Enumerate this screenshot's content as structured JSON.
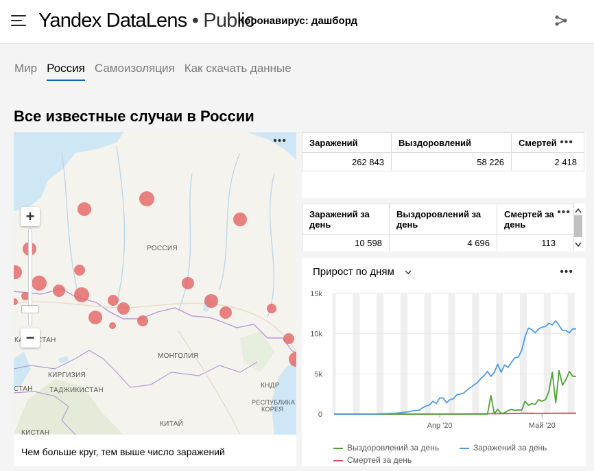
{
  "header": {
    "logo_yandex": "Yandex",
    "logo_datalens": "DataLens",
    "logo_public": "• Public",
    "dashboard_title": "Коронавирус: дашборд"
  },
  "tabs": [
    {
      "label": "Мир"
    },
    {
      "label": "Россия",
      "active": true
    },
    {
      "label": "Самоизоляция"
    },
    {
      "label": "Как скачать данные"
    }
  ],
  "section_title": "Все известные случаи в России",
  "map": {
    "caption": "Чем больше круг, тем выше число заражений",
    "labels": {
      "russia": "РОССИЯ",
      "kazakhstan": "КАЗАХСТАН",
      "mongolia": "МОНГОЛИЯ",
      "kyrgyzstan": "КИРГИЗИЯ",
      "stan": "СТАН",
      "tajikistan": "ТАДЖИКИСТАН",
      "china": "КИТАЙ",
      "kndr": "КНДР",
      "korea_1": "РЕСПУБЛИКА",
      "korea_2": "КОРЕЯ",
      "kistan": "КИСТАН"
    },
    "zoom_plus": "+",
    "zoom_minus": "−"
  },
  "totals_table": {
    "headers": [
      "Заражений",
      "Выздоровлений",
      "Смертей"
    ],
    "values": [
      "262 843",
      "58 226",
      "2 418"
    ]
  },
  "daily_table": {
    "headers": [
      "Заражений за день",
      "Выздоровлений за день",
      "Смертей за день"
    ],
    "values": [
      "10 598",
      "4 696",
      "113"
    ]
  },
  "chart_title": "Прирост по дням",
  "chart_data": {
    "type": "line",
    "title": "Прирост по дням",
    "xlabel": "",
    "ylabel": "",
    "ylim": [
      0,
      15000
    ],
    "yticks": [
      "0",
      "5k",
      "10k",
      "15k"
    ],
    "xticks": [
      "Апр '20",
      "Май '20"
    ],
    "x_start": "2020-03-01",
    "x_end": "2020-05-12",
    "grid": true,
    "legend": "bottom",
    "series": [
      {
        "name": "Выздоровлений за день",
        "color": "#4aa232",
        "values": [
          0,
          0,
          0,
          0,
          0,
          0,
          0,
          0,
          0,
          0,
          0,
          0,
          0,
          0,
          0,
          0,
          0,
          0,
          0,
          0,
          0,
          0,
          0,
          0,
          0,
          0,
          0,
          0,
          0,
          0,
          0,
          0,
          0,
          0,
          0,
          0,
          0,
          0,
          0,
          0,
          0,
          0,
          0,
          0,
          0,
          0,
          2300,
          30,
          600,
          80,
          160,
          420,
          580,
          470,
          520,
          480,
          1600,
          1100,
          1300,
          1200,
          1800,
          1600,
          1800,
          2800,
          5200,
          1400,
          5400,
          3600,
          4300,
          5300,
          4700,
          4696
        ]
      },
      {
        "name": "Заражений за день",
        "color": "#4c9be8",
        "values": [
          0,
          0,
          0,
          0,
          0,
          0,
          0,
          0,
          0,
          0,
          0,
          10,
          20,
          30,
          40,
          50,
          70,
          100,
          100,
          150,
          200,
          250,
          300,
          400,
          450,
          500,
          800,
          1000,
          1150,
          1600,
          1300,
          2000,
          2000,
          1400,
          1800,
          1900,
          2400,
          2500,
          2600,
          3000,
          3300,
          3600,
          3900,
          4400,
          4800,
          5300,
          4700,
          5200,
          6200,
          5200,
          6100,
          5800,
          6400,
          7000,
          7100,
          7900,
          9600,
          10700,
          10500,
          10100,
          10600,
          10800,
          10900,
          11300,
          11100,
          11600,
          11000,
          10400,
          10400,
          10100,
          10600,
          10598
        ]
      },
      {
        "name": "Смертей за день",
        "color": "#e0456b",
        "values": [
          0,
          0,
          0,
          0,
          0,
          0,
          0,
          0,
          0,
          0,
          0,
          0,
          0,
          0,
          0,
          0,
          0,
          0,
          0,
          0,
          0,
          0,
          0,
          0,
          1,
          1,
          2,
          2,
          3,
          3,
          4,
          6,
          7,
          8,
          10,
          12,
          15,
          18,
          18,
          20,
          22,
          28,
          30,
          34,
          40,
          45,
          50,
          58,
          50,
          60,
          65,
          70,
          80,
          90,
          95,
          100,
          100,
          105,
          110,
          95,
          86,
          88,
          100,
          98,
          100,
          104,
          110,
          115,
          108,
          111,
          110,
          113
        ]
      }
    ]
  }
}
